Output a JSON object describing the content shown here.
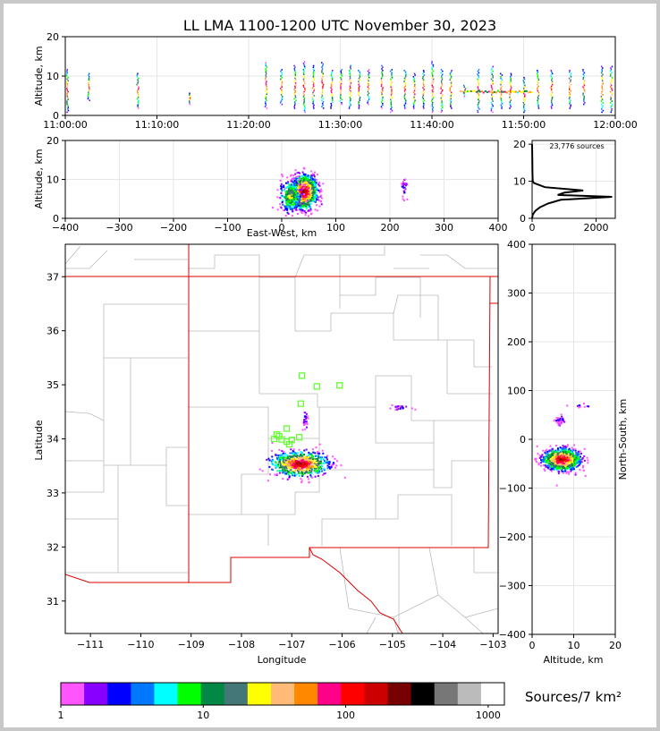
{
  "title": "LL LMA 1100-1200 UTC November 30, 2023",
  "chart_data": [
    {
      "id": "time_height",
      "type": "scatter",
      "ylabel": "Altitude, km",
      "xlim": [
        "11:00:00",
        "12:00:00"
      ],
      "ylim": [
        0,
        20
      ],
      "x_ticks": [
        "11:00:00",
        "11:10:00",
        "11:20:00",
        "11:30:00",
        "11:40:00",
        "11:50:00",
        "12:00:00"
      ],
      "y_ticks": [
        0,
        10,
        20
      ],
      "grid": true,
      "bursts": [
        {
          "t": "11:00:10",
          "low": 1,
          "high": 12
        },
        {
          "t": "11:02:30",
          "low": 4,
          "high": 11
        },
        {
          "t": "11:07:50",
          "low": 2,
          "high": 11
        },
        {
          "t": "11:13:30",
          "low": 3,
          "high": 6
        },
        {
          "t": "11:21:50",
          "low": 2,
          "high": 14
        },
        {
          "t": "11:23:30",
          "low": 3,
          "high": 12
        },
        {
          "t": "11:25:00",
          "low": 2,
          "high": 13
        },
        {
          "t": "11:26:00",
          "low": 1,
          "high": 14
        },
        {
          "t": "11:27:00",
          "low": 2,
          "high": 13
        },
        {
          "t": "11:28:00",
          "low": 2,
          "high": 14
        },
        {
          "t": "11:29:00",
          "low": 2,
          "high": 12
        },
        {
          "t": "11:30:00",
          "low": 3,
          "high": 12
        },
        {
          "t": "11:31:00",
          "low": 2,
          "high": 13
        },
        {
          "t": "11:32:00",
          "low": 2,
          "high": 12
        },
        {
          "t": "11:33:00",
          "low": 3,
          "high": 12
        },
        {
          "t": "11:34:30",
          "low": 2,
          "high": 13
        },
        {
          "t": "11:35:30",
          "low": 1,
          "high": 12
        },
        {
          "t": "11:37:00",
          "low": 2,
          "high": 12
        },
        {
          "t": "11:38:00",
          "low": 2,
          "high": 11
        },
        {
          "t": "11:39:00",
          "low": 2,
          "high": 12
        },
        {
          "t": "11:40:00",
          "low": 1,
          "high": 14
        },
        {
          "t": "11:41:00",
          "low": 1,
          "high": 12
        },
        {
          "t": "11:42:00",
          "low": 2,
          "high": 12
        },
        {
          "t": "11:43:30",
          "low": 5,
          "high": 8
        },
        {
          "t": "11:45:00",
          "low": 1,
          "high": 12
        },
        {
          "t": "11:46:30",
          "low": 1,
          "high": 13
        },
        {
          "t": "11:47:30",
          "low": 2,
          "high": 11
        },
        {
          "t": "11:48:30",
          "low": 2,
          "high": 11
        },
        {
          "t": "11:50:00",
          "low": 1,
          "high": 10
        },
        {
          "t": "11:51:30",
          "low": 2,
          "high": 12
        },
        {
          "t": "11:53:00",
          "low": 2,
          "high": 12
        },
        {
          "t": "11:55:00",
          "low": 2,
          "high": 12
        },
        {
          "t": "11:56:30",
          "low": 3,
          "high": 12
        },
        {
          "t": "11:58:30",
          "low": 1,
          "high": 13
        },
        {
          "t": "11:59:30",
          "low": 1,
          "high": 13
        }
      ],
      "dense_band": {
        "start": "11:43:00",
        "end": "11:51:00",
        "altitude": 6
      }
    },
    {
      "id": "ew_altitude",
      "type": "heatmap",
      "xlabel": "East-West, km",
      "ylabel": "Altitude, km",
      "xlim": [
        -400,
        400
      ],
      "ylim": [
        0,
        20
      ],
      "x_ticks": [
        -400,
        -300,
        -200,
        -100,
        0,
        100,
        200,
        300,
        400
      ],
      "y_ticks": [
        0,
        10,
        20
      ],
      "grid": true,
      "clusters": [
        {
          "x": 40,
          "y": 7,
          "sx": 12,
          "sy": 2.2,
          "n": 900,
          "peak": "dense"
        },
        {
          "x": 15,
          "y": 6,
          "sx": 10,
          "sy": 2,
          "n": 300,
          "peak": "mid"
        },
        {
          "x": 225,
          "y": 8,
          "sx": 3,
          "sy": 1.2,
          "n": 30,
          "peak": "sparse"
        }
      ]
    },
    {
      "id": "altitude_histogram",
      "type": "line",
      "annotation": "23,776 sources",
      "xlim": [
        0,
        2600
      ],
      "ylim": [
        0,
        21
      ],
      "x_ticks": [
        0,
        2000
      ],
      "y_ticks": [
        0,
        10,
        20
      ],
      "grid": true,
      "profile": [
        [
          0,
          0
        ],
        [
          20,
          1
        ],
        [
          100,
          2
        ],
        [
          250,
          3
        ],
        [
          500,
          4
        ],
        [
          900,
          5
        ],
        [
          2500,
          5.8
        ],
        [
          800,
          6.3
        ],
        [
          1000,
          6.9
        ],
        [
          1600,
          7.5
        ],
        [
          400,
          8.4
        ],
        [
          60,
          9.5
        ],
        [
          20,
          10
        ],
        [
          10,
          12
        ],
        [
          0,
          20
        ]
      ]
    },
    {
      "id": "plan_view",
      "type": "heatmap",
      "xlabel": "Longitude",
      "ylabel": "Latitude",
      "xlim": [
        -111.5,
        -102.9
      ],
      "ylim": [
        30.4,
        37.6
      ],
      "x_ticks": [
        -111,
        -110,
        -109,
        -108,
        -107,
        -106,
        -105,
        -104,
        -103
      ],
      "y_ticks": [
        31,
        32,
        33,
        34,
        35,
        36,
        37
      ],
      "clusters": [
        {
          "lon": -106.85,
          "lat": 33.55,
          "slon": 0.28,
          "slat": 0.11,
          "n": 700,
          "peak": "dense"
        },
        {
          "lon": -106.75,
          "lat": 34.35,
          "slon": 0.03,
          "slat": 0.08,
          "n": 30,
          "peak": "sparse"
        },
        {
          "lon": -104.85,
          "lat": 34.6,
          "slon": 0.1,
          "slat": 0.03,
          "n": 25,
          "peak": "sparse"
        }
      ],
      "stations": [
        [
          -106.8,
          35.17
        ],
        [
          -106.5,
          34.97
        ],
        [
          -106.05,
          34.99
        ],
        [
          -106.82,
          34.65
        ],
        [
          -107.1,
          34.19
        ],
        [
          -107.3,
          34.08
        ],
        [
          -107.35,
          34.0
        ],
        [
          -107.2,
          33.99
        ],
        [
          -107.0,
          33.98
        ],
        [
          -106.85,
          34.03
        ],
        [
          -107.25,
          34.05
        ],
        [
          -107.1,
          33.95
        ],
        [
          -107.05,
          33.9
        ]
      ]
    },
    {
      "id": "altitude_ns",
      "type": "heatmap",
      "xlabel": "Altitude, km",
      "ylabel": "North-South, km",
      "xlim": [
        0,
        20
      ],
      "ylim": [
        -400,
        400
      ],
      "x_ticks": [
        0,
        10,
        20
      ],
      "y_ticks": [
        -400,
        -300,
        -200,
        -100,
        0,
        100,
        200,
        300,
        400
      ],
      "grid": true,
      "clusters": [
        {
          "x": 7,
          "y": -40,
          "sx": 2.2,
          "sy": 11,
          "n": 900,
          "peak": "dense"
        },
        {
          "x": 6.5,
          "y": 40,
          "sx": 0.6,
          "sy": 6,
          "n": 40,
          "peak": "sparse"
        },
        {
          "x": 11,
          "y": 70,
          "sx": 2,
          "sy": 2,
          "n": 10,
          "peak": "sparse"
        }
      ]
    },
    {
      "id": "colorbar",
      "type": "heatmap",
      "label": "Sources/7 km²",
      "scale": "log",
      "range": [
        1,
        1300
      ],
      "tick_labels": [
        "1",
        "10",
        "100",
        "1000"
      ],
      "colors": [
        "#ff55ff",
        "#8800ff",
        "#0000ff",
        "#0077ff",
        "#00ffff",
        "#00ff00",
        "#008844",
        "#447777",
        "#ffff00",
        "#ffbb77",
        "#ff8800",
        "#ff0088",
        "#ff0000",
        "#cc0000",
        "#770000",
        "#000000",
        "#777777",
        "#bbbbbb",
        "#ffffff"
      ]
    }
  ]
}
